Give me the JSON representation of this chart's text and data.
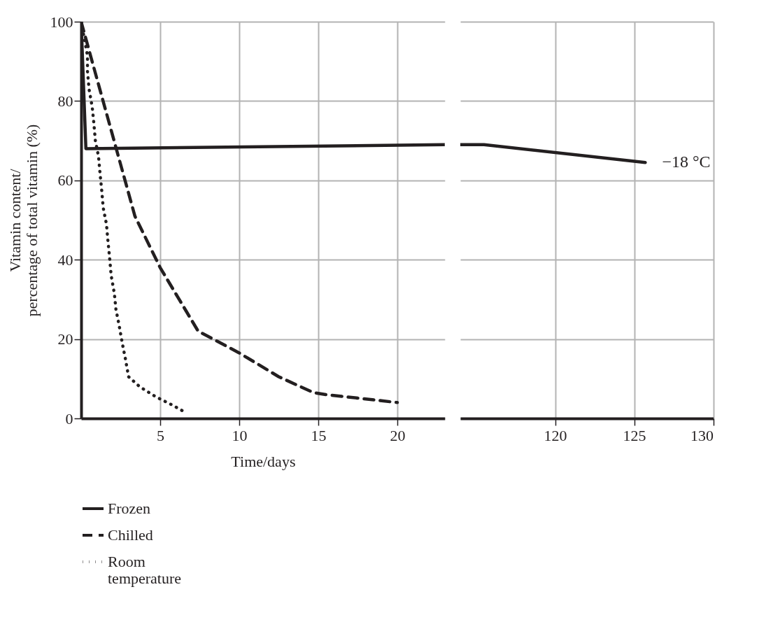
{
  "chart_data": [
    {
      "type": "line",
      "xlabel": "Time/days",
      "ylabel": "Vitamin content/\npercentage of total vitamin (%)",
      "xlim": [
        0,
        23
      ],
      "xticks": [
        5,
        10,
        15,
        20
      ],
      "ylim": [
        0,
        100
      ],
      "yticks": [
        0,
        20,
        40,
        60,
        80,
        100
      ],
      "grid": true,
      "legend": "bottom",
      "marker": "none",
      "series": [
        {
          "name": "Frozen",
          "color": "#231f20",
          "line_style": "solid",
          "x": [
            0,
            0.3,
            23
          ],
          "values": [
            100,
            68,
            69
          ]
        },
        {
          "name": "Chilled",
          "color": "#231f20",
          "line_style": "dashed",
          "x": [
            0,
            3.4,
            5,
            7.4,
            10,
            12.5,
            14.7,
            15.5,
            20
          ],
          "values": [
            100,
            51,
            38,
            22,
            16.5,
            10.5,
            6.5,
            6,
            4
          ]
        },
        {
          "name": "Room temperature",
          "color": "#231f20",
          "line_style": "dotted",
          "x": [
            0,
            0.4,
            0.4,
            0.5,
            0.7,
            0.8,
            0.9,
            1.1,
            1.2,
            1.3,
            1.4,
            1.6,
            1.7,
            1.8,
            1.9,
            2.1,
            2.2,
            2.4,
            2.6,
            2.8,
            3.0,
            3.7,
            4.7,
            5.7,
            6.6
          ],
          "values": [
            100,
            91.5,
            87.5,
            83,
            78.5,
            74.5,
            70,
            66,
            61.5,
            57.5,
            53,
            49,
            44.5,
            40.5,
            36,
            31.5,
            27.5,
            23.5,
            19,
            15,
            10.5,
            8,
            5.5,
            3.5,
            1.5
          ]
        }
      ]
    },
    {
      "type": "line",
      "xlim": [
        114,
        130
      ],
      "xticks": [
        120,
        125,
        130
      ],
      "ylim": [
        0,
        100
      ],
      "yticks": [
        0,
        20,
        40,
        60,
        80,
        100
      ],
      "grid": true,
      "tick_labels": "x",
      "marker": "none",
      "annotations": [
        "−18 °C"
      ],
      "series": [
        {
          "color": "#231f20",
          "line_style": "solid",
          "x": [
            114,
            115.5,
            125.7
          ],
          "values": [
            69,
            69,
            64.5
          ]
        }
      ]
    }
  ]
}
